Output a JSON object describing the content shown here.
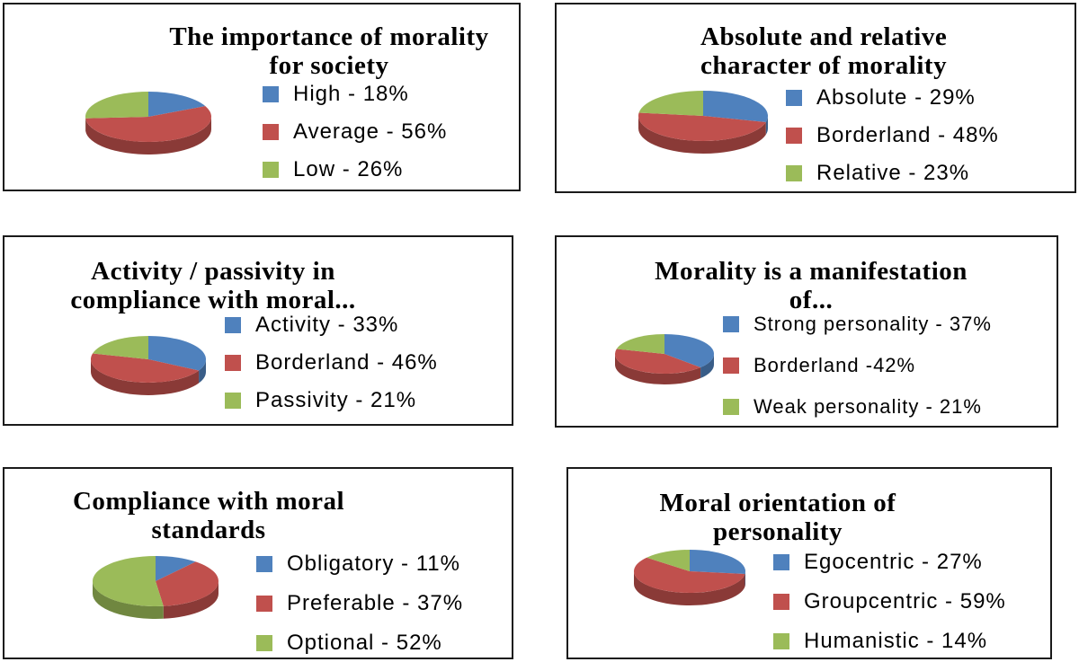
{
  "colors": {
    "blue": "#4f81bd",
    "red": "#c0504d",
    "green": "#9bbb59"
  },
  "chart_data": [
    {
      "type": "pie",
      "title": "The importance of morality\nfor society",
      "categories": [
        "High - 18%",
        "Average - 56%",
        "Low - 26%"
      ],
      "values": [
        18,
        56,
        26
      ],
      "colors": [
        "#4f81bd",
        "#c0504d",
        "#9bbb59"
      ],
      "legend": "right"
    },
    {
      "type": "pie",
      "title": "Absolute and relative\ncharacter of morality",
      "categories": [
        "Absolute - 29%",
        "Borderland - 48%",
        "Relative - 23%"
      ],
      "values": [
        29,
        48,
        23
      ],
      "colors": [
        "#4f81bd",
        "#c0504d",
        "#9bbb59"
      ],
      "legend": "right"
    },
    {
      "type": "pie",
      "title": "Activity / passivity in\ncompliance with moral...",
      "categories": [
        "Activity - 33%",
        "Borderland - 46%",
        "Passivity - 21%"
      ],
      "values": [
        33,
        46,
        21
      ],
      "colors": [
        "#4f81bd",
        "#c0504d",
        "#9bbb59"
      ],
      "legend": "right"
    },
    {
      "type": "pie",
      "title": "Morality is a manifestation\nof...",
      "categories": [
        "Strong personality - 37%",
        "Borderland -42%",
        "Weak personality - 21%"
      ],
      "values": [
        37,
        42,
        21
      ],
      "colors": [
        "#4f81bd",
        "#c0504d",
        "#9bbb59"
      ],
      "legend": "right"
    },
    {
      "type": "pie",
      "title": "Compliance with moral\nstandards",
      "categories": [
        "Obligatory - 11%",
        "Preferable - 37%",
        "Optional - 52%"
      ],
      "values": [
        11,
        37,
        52
      ],
      "colors": [
        "#4f81bd",
        "#c0504d",
        "#9bbb59"
      ],
      "legend": "right"
    },
    {
      "type": "pie",
      "title": "Moral orientation of\npersonality",
      "categories": [
        "Egocentric - 27%",
        "Groupcentric - 59%",
        "Humanistic - 14%"
      ],
      "values": [
        27,
        59,
        14
      ],
      "colors": [
        "#4f81bd",
        "#c0504d",
        "#9bbb59"
      ],
      "legend": "right"
    }
  ]
}
